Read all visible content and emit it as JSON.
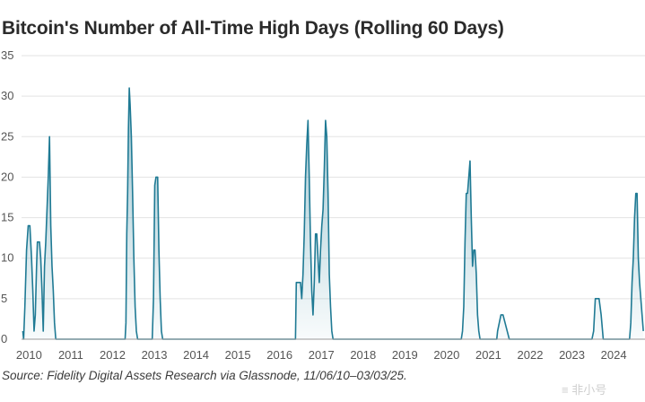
{
  "title": "Bitcoin's Number of All-Time High Days (Rolling 60 Days)",
  "source": "Source: Fidelity Digital Assets Research via Glassnode, 11/06/10–03/03/25.",
  "watermark": "≡ 非小号",
  "chart_data": {
    "type": "area",
    "title": "Bitcoin's Number of All-Time High Days (Rolling 60 Days)",
    "xlabel": "",
    "ylabel": "",
    "xlim": [
      2009.82,
      2024.75
    ],
    "ylim": [
      0,
      35
    ],
    "y_ticks": [
      0,
      5,
      10,
      15,
      20,
      25,
      30,
      35
    ],
    "x_ticks": [
      2010,
      2011,
      2012,
      2013,
      2014,
      2015,
      2016,
      2017,
      2018,
      2019,
      2020,
      2021,
      2022,
      2023,
      2024
    ],
    "grid": "horizontal",
    "line_color": "#1f7a94",
    "fill_color": "#1f7a94",
    "series": [
      {
        "x": [
          2009.85,
          2009.87,
          2009.9,
          2009.94,
          2009.98,
          2010.02,
          2010.06,
          2010.09,
          2010.12,
          2010.15,
          2010.18,
          2010.2,
          2010.22,
          2010.25,
          2010.28,
          2010.31,
          2010.34,
          2010.37,
          2010.4,
          2010.43,
          2010.46,
          2010.49,
          2010.52,
          2010.55,
          2010.58,
          2010.61,
          2010.64,
          2010.67,
          2010.7,
          2010.74,
          2010.78,
          2010.85,
          2011.0,
          2011.5,
          2012.0,
          2012.3,
          2012.32,
          2012.34,
          2012.36,
          2012.38,
          2012.4,
          2012.42,
          2012.45,
          2012.48,
          2012.51,
          2012.54,
          2012.57,
          2012.6,
          2012.63,
          2012.67,
          2012.72,
          2012.9,
          2012.95,
          2012.98,
          2013.01,
          2013.04,
          2013.08,
          2013.11,
          2013.14,
          2013.17,
          2013.2,
          2013.23,
          2013.3,
          2013.6,
          2014.0,
          2015.0,
          2016.0,
          2016.38,
          2016.4,
          2016.45,
          2016.5,
          2016.53,
          2016.56,
          2016.59,
          2016.62,
          2016.65,
          2016.68,
          2016.71,
          2016.74,
          2016.77,
          2016.8,
          2016.83,
          2016.86,
          2016.89,
          2016.92,
          2016.95,
          2016.98,
          2017.01,
          2017.04,
          2017.07,
          2017.1,
          2017.13,
          2017.16,
          2017.19,
          2017.22,
          2017.25,
          2017.28,
          2017.31,
          2017.34,
          2017.37,
          2017.4,
          2017.43,
          2017.46,
          2017.49,
          2017.52,
          2017.56,
          2017.6,
          2017.65,
          2018.0,
          2019.0,
          2020.0,
          2020.28,
          2020.35,
          2020.38,
          2020.41,
          2020.44,
          2020.47,
          2020.5,
          2020.53,
          2020.56,
          2020.59,
          2020.62,
          2020.65,
          2020.68,
          2020.71,
          2020.74,
          2020.77,
          2020.8,
          2020.84,
          2020.9,
          2021.0,
          2021.1,
          2021.2,
          2021.22,
          2021.26,
          2021.3,
          2021.35,
          2021.4,
          2021.45,
          2021.5,
          2021.6,
          2022.0,
          2023.0,
          2023.4,
          2023.48,
          2023.52,
          2023.56,
          2023.6,
          2023.65,
          2023.7,
          2023.75,
          2024.0,
          2024.1,
          2024.15,
          2024.2,
          2024.25,
          2024.3,
          2024.35,
          2024.38,
          2024.41,
          2024.44,
          2024.47,
          2024.5,
          2024.53,
          2024.56,
          2024.59,
          2024.62,
          2024.65,
          2024.68,
          2024.71
        ],
        "y": [
          1,
          0,
          4,
          11,
          14,
          14,
          10,
          6,
          1,
          3,
          9,
          12,
          12,
          12,
          10,
          6,
          1,
          9,
          12,
          16,
          20,
          25,
          14,
          9,
          6,
          2,
          0,
          0,
          0,
          0,
          0,
          0,
          0,
          0,
          0,
          0,
          2,
          13,
          18,
          26,
          31,
          29,
          25,
          18,
          10,
          4,
          1,
          0,
          0,
          0,
          0,
          0,
          0,
          5,
          19,
          20,
          20,
          11,
          5,
          1,
          0,
          0,
          0,
          0,
          0,
          0,
          0,
          0,
          7,
          7,
          7,
          5,
          8,
          13,
          20,
          24,
          27,
          20,
          12,
          6,
          3,
          7,
          13,
          13,
          10,
          7,
          11,
          14,
          16,
          21,
          27,
          25,
          18,
          8,
          4,
          1,
          0,
          0,
          0,
          0,
          0,
          0,
          0,
          0,
          0,
          0,
          0,
          0,
          0,
          0,
          0,
          0,
          0,
          1,
          4,
          12,
          18,
          18,
          20,
          22,
          15,
          9,
          11,
          11,
          8,
          3,
          1,
          0,
          0,
          0,
          0,
          0,
          0,
          1,
          2,
          3,
          3,
          2,
          1,
          0,
          0,
          0,
          0,
          0,
          0,
          1,
          5,
          5,
          5,
          3,
          0,
          0,
          0,
          0,
          0,
          0,
          0,
          0,
          0,
          2,
          7,
          10,
          15,
          18,
          18,
          10,
          7,
          5,
          3,
          1
        ]
      }
    ]
  }
}
